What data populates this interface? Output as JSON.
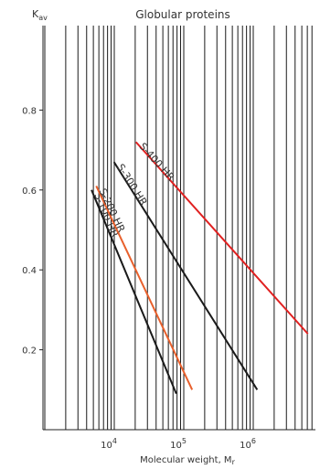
{
  "chart_data": {
    "type": "line",
    "title": "Globular proteins",
    "xlabel": "Molecular weight, M",
    "xlabel_sub": "r",
    "ylabel": "K",
    "ylabel_sub": "av",
    "x_scale": "log",
    "xlim": [
      1000,
      8000000
    ],
    "ylim": [
      0,
      1.0
    ],
    "grid": "vertical log grid",
    "x_tick_labels": [
      {
        "value": 10000,
        "base": "10",
        "exp": "4"
      },
      {
        "value": 100000,
        "base": "10",
        "exp": "5"
      },
      {
        "value": 1000000,
        "base": "10",
        "exp": "6"
      }
    ],
    "y_ticks": [
      0.2,
      0.4,
      0.6,
      0.8
    ],
    "y_tick_labels": [
      "0.2",
      "0.4",
      "0.6",
      "0.8"
    ],
    "series": [
      {
        "name": "S-100 HR",
        "color": "#1a1a1a",
        "x": [
          4700,
          78000
        ],
        "y": [
          0.6,
          0.09
        ]
      },
      {
        "name": "S-200 HR",
        "color": "#e8602c",
        "x": [
          5500,
          132000
        ],
        "y": [
          0.61,
          0.1
        ]
      },
      {
        "name": "S-300 HR",
        "color": "#1a1a1a",
        "x": [
          9900,
          1140000
        ],
        "y": [
          0.67,
          0.1
        ]
      },
      {
        "name": "S-400 HR",
        "color": "#e02020",
        "x": [
          20500,
          6100000
        ],
        "y": [
          0.72,
          0.24
        ]
      }
    ]
  }
}
